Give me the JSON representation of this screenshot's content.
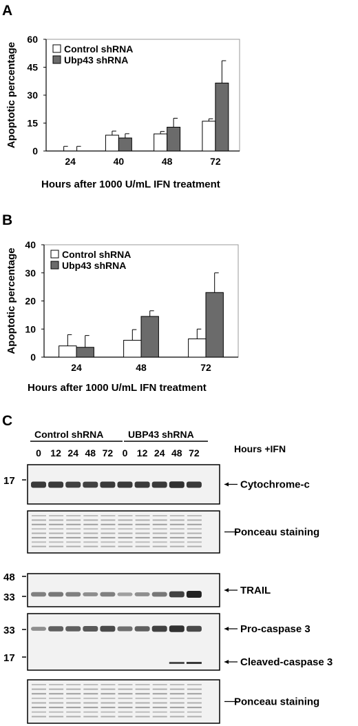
{
  "colors": {
    "control": "#ffffff",
    "ubp43": "#6b6b6b",
    "axis": "#000000",
    "blot_bg": "#f2f2f2",
    "band": "#222222"
  },
  "chart_data": [
    {
      "panel": "A",
      "type": "bar",
      "categories": [
        "24",
        "40",
        "48",
        "72"
      ],
      "series": [
        {
          "name": "Control shRNA",
          "values": [
            0,
            8.5,
            9.2,
            16.0
          ],
          "errors": [
            2.5,
            2.2,
            1.3,
            1.3
          ]
        },
        {
          "name": "Ubp43 shRNA",
          "values": [
            0,
            7.0,
            12.8,
            36.5
          ],
          "errors": [
            2.5,
            2.3,
            4.8,
            12.0
          ]
        }
      ],
      "yticks": [
        "0",
        "15",
        "30",
        "45",
        "60"
      ],
      "ylim": [
        0,
        60
      ],
      "ylabel": "Apoptotic percentage",
      "xlabel": "Hours after 1000 U/mL IFN treatment",
      "legend_position": "top-left"
    },
    {
      "panel": "B",
      "type": "bar",
      "categories": [
        "24",
        "48",
        "72"
      ],
      "series": [
        {
          "name": "Control shRNA",
          "values": [
            4.0,
            6.0,
            6.5
          ],
          "errors": [
            4.0,
            3.8,
            3.5
          ]
        },
        {
          "name": "Ubp43 shRNA",
          "values": [
            3.5,
            14.5,
            23.0
          ],
          "errors": [
            4.2,
            2.0,
            7.0
          ]
        }
      ],
      "yticks": [
        "0",
        "10",
        "20",
        "30",
        "40"
      ],
      "ylim": [
        0,
        40
      ],
      "ylabel": "Apoptotic percentage",
      "xlabel": "Hours after 1000 U/mL IFN treatment",
      "legend_position": "top-left"
    }
  ],
  "blot": {
    "panel": "C",
    "group_labels": [
      "Control shRNA",
      "UBP43 shRNA"
    ],
    "lanes": [
      "0",
      "12",
      "24",
      "48",
      "72",
      "0",
      "12",
      "24",
      "48",
      "72"
    ],
    "hours_label": "Hours +IFN",
    "strips": [
      {
        "label": "Cytochrome-c",
        "markers": [
          "17"
        ],
        "intensity": [
          0.85,
          0.85,
          0.8,
          0.8,
          0.85,
          0.85,
          0.85,
          0.85,
          0.9,
          0.85
        ]
      },
      {
        "label": "Ponceau staining",
        "markers": []
      },
      {
        "label": "TRAIL",
        "markers": [
          "48",
          "33"
        ],
        "intensity": [
          0.4,
          0.45,
          0.4,
          0.3,
          0.4,
          0.2,
          0.3,
          0.45,
          0.8,
          1.0
        ]
      },
      {
        "label": "Pro-caspase 3",
        "second_label": "Cleaved-caspase 3",
        "markers": [
          "33",
          "17"
        ],
        "intensity": [
          0.3,
          0.6,
          0.6,
          0.65,
          0.75,
          0.5,
          0.6,
          0.8,
          0.9,
          0.75
        ],
        "cleaved": [
          0,
          0,
          0,
          0,
          0,
          0,
          0,
          0,
          0.5,
          0.6
        ]
      },
      {
        "label": "Ponceau staining",
        "markers": []
      }
    ]
  }
}
